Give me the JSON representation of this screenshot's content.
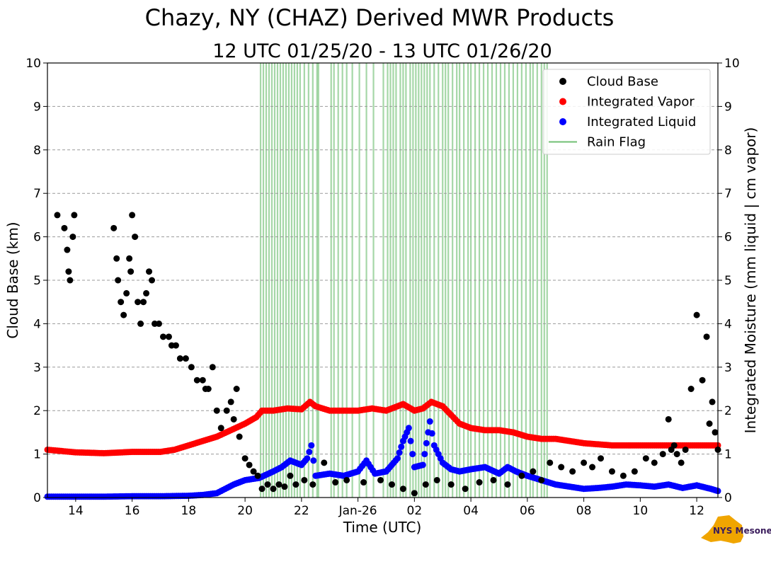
{
  "chart_data": {
    "type": "scatter",
    "title": "Chazy, NY (CHAZ) Derived MWR Products",
    "subtitle": "12 UTC 01/25/20 - 13 UTC 01/26/20",
    "xlabel": "Time (UTC)",
    "ylabel_left": "Cloud Base (km)",
    "ylabel_right": "Integrated Moisture (mm liquid | cm vapor)",
    "xlim": [
      13.0,
      36.75
    ],
    "ylim": [
      0,
      10
    ],
    "x_ticks": [
      {
        "value": 14,
        "label": "14"
      },
      {
        "value": 16,
        "label": "16"
      },
      {
        "value": 18,
        "label": "18"
      },
      {
        "value": 20,
        "label": "20"
      },
      {
        "value": 22,
        "label": "22"
      },
      {
        "value": 24,
        "label": "Jan-26"
      },
      {
        "value": 26,
        "label": "02"
      },
      {
        "value": 28,
        "label": "04"
      },
      {
        "value": 30,
        "label": "06"
      },
      {
        "value": 32,
        "label": "08"
      },
      {
        "value": 34,
        "label": "10"
      },
      {
        "value": 36,
        "label": "12"
      }
    ],
    "y_ticks": [
      "0",
      "1",
      "2",
      "3",
      "4",
      "5",
      "6",
      "7",
      "8",
      "9",
      "10"
    ],
    "grid": true,
    "legend_position": "top-right",
    "legend": [
      {
        "label": "Cloud Base",
        "color": "#000000",
        "kind": "marker"
      },
      {
        "label": "Integrated Vapor",
        "color": "#ff0000",
        "kind": "marker"
      },
      {
        "label": "Integrated Liquid",
        "color": "#0000ff",
        "kind": "marker"
      },
      {
        "label": "Rain Flag",
        "color": "#4caf50",
        "kind": "line"
      }
    ],
    "series": [
      {
        "name": "Cloud Base",
        "color": "#000000",
        "x": [
          13.35,
          13.6,
          13.7,
          13.75,
          13.8,
          13.9,
          13.95,
          15.35,
          15.45,
          15.5,
          15.6,
          15.7,
          15.8,
          15.9,
          15.95,
          16.0,
          16.1,
          16.2,
          16.3,
          16.4,
          16.5,
          16.6,
          16.7,
          16.8,
          16.95,
          17.1,
          17.3,
          17.4,
          17.55,
          17.7,
          17.9,
          18.1,
          18.3,
          18.5,
          18.6,
          18.7,
          18.85,
          19.0,
          19.15,
          19.35,
          19.5,
          19.6,
          19.7,
          19.8,
          20.0,
          20.15,
          20.3,
          20.45,
          20.6,
          20.8,
          21.0,
          21.2,
          21.4,
          21.6,
          21.8,
          22.1,
          22.4,
          22.8,
          23.2,
          23.6,
          24.2,
          24.8,
          25.2,
          25.6,
          26.0,
          26.4,
          26.8,
          27.3,
          27.8,
          28.3,
          28.8,
          29.3,
          29.8,
          30.2,
          30.5,
          30.8,
          31.2,
          31.6,
          32.0,
          32.3,
          32.6,
          33.0,
          33.4,
          33.8,
          34.2,
          34.5,
          34.8,
          35.0,
          35.1,
          35.2,
          35.3,
          35.45,
          35.6,
          35.8,
          36.0,
          36.2,
          36.35,
          36.45,
          36.55,
          36.65,
          36.75
        ],
        "values": [
          6.5,
          6.2,
          5.7,
          5.2,
          5.0,
          6.0,
          6.5,
          6.2,
          5.5,
          5.0,
          4.5,
          4.2,
          4.7,
          5.5,
          5.2,
          6.5,
          6.0,
          4.5,
          4.0,
          4.5,
          4.7,
          5.2,
          5.0,
          4.0,
          4.0,
          3.7,
          3.7,
          3.5,
          3.5,
          3.2,
          3.2,
          3.0,
          2.7,
          2.7,
          2.5,
          2.5,
          3.0,
          2.0,
          1.6,
          2.0,
          2.2,
          1.8,
          2.5,
          1.4,
          0.9,
          0.75,
          0.6,
          0.5,
          0.2,
          0.3,
          0.2,
          0.3,
          0.25,
          0.5,
          0.3,
          0.4,
          0.3,
          0.8,
          0.35,
          0.4,
          0.35,
          0.4,
          0.3,
          0.2,
          0.1,
          0.3,
          0.4,
          0.3,
          0.2,
          0.35,
          0.4,
          0.3,
          0.5,
          0.6,
          0.4,
          0.8,
          0.7,
          0.6,
          0.8,
          0.7,
          0.9,
          0.6,
          0.5,
          0.6,
          0.9,
          0.8,
          1.0,
          1.8,
          1.1,
          1.2,
          1.0,
          0.8,
          1.1,
          2.5,
          4.2,
          2.7,
          3.7,
          1.7,
          2.2,
          1.5,
          1.1
        ]
      },
      {
        "name": "Integrated Vapor",
        "color": "#ff0000",
        "x": [
          13.0,
          14.0,
          15.0,
          16.0,
          17.0,
          17.5,
          18.0,
          18.5,
          19.0,
          19.5,
          20.0,
          20.4,
          20.6,
          21.0,
          21.5,
          22.0,
          22.3,
          22.5,
          23.0,
          23.5,
          24.0,
          24.5,
          25.0,
          25.4,
          25.6,
          26.0,
          26.3,
          26.6,
          27.0,
          27.3,
          27.6,
          28.0,
          28.5,
          29.0,
          29.5,
          30.0,
          30.5,
          31.0,
          31.5,
          32.0,
          33.0,
          34.0,
          35.0,
          36.0,
          36.75
        ],
        "values": [
          1.1,
          1.04,
          1.02,
          1.05,
          1.05,
          1.1,
          1.2,
          1.3,
          1.4,
          1.55,
          1.7,
          1.85,
          2.0,
          2.0,
          2.05,
          2.03,
          2.2,
          2.1,
          2.0,
          2.0,
          2.0,
          2.05,
          2.0,
          2.1,
          2.15,
          2.0,
          2.05,
          2.2,
          2.1,
          1.9,
          1.7,
          1.6,
          1.55,
          1.55,
          1.5,
          1.4,
          1.35,
          1.35,
          1.3,
          1.25,
          1.2,
          1.2,
          1.2,
          1.2,
          1.2
        ]
      },
      {
        "name": "Integrated Liquid",
        "color": "#0000ff",
        "x": [
          13.0,
          14.0,
          15.0,
          16.0,
          17.0,
          18.0,
          18.5,
          19.0,
          19.3,
          19.6,
          20.0,
          20.5,
          21.0,
          21.3,
          21.6,
          22.0,
          22.2,
          22.35,
          22.5,
          23.0,
          23.5,
          24.0,
          24.3,
          24.6,
          25.0,
          25.4,
          25.6,
          25.8,
          26.0,
          26.3,
          26.55,
          26.7,
          27.0,
          27.3,
          27.6,
          28.0,
          28.5,
          29.0,
          29.3,
          29.6,
          30.0,
          30.5,
          31.0,
          31.5,
          32.0,
          32.5,
          33.0,
          33.5,
          34.0,
          34.5,
          35.0,
          35.5,
          36.0,
          36.5,
          36.75
        ],
        "values": [
          0.02,
          0.02,
          0.02,
          0.03,
          0.03,
          0.04,
          0.06,
          0.1,
          0.2,
          0.3,
          0.4,
          0.45,
          0.6,
          0.7,
          0.85,
          0.75,
          0.9,
          1.2,
          0.5,
          0.55,
          0.5,
          0.6,
          0.85,
          0.55,
          0.6,
          0.9,
          1.3,
          1.6,
          0.7,
          0.75,
          1.75,
          1.2,
          0.8,
          0.65,
          0.6,
          0.65,
          0.7,
          0.55,
          0.7,
          0.6,
          0.5,
          0.4,
          0.3,
          0.25,
          0.2,
          0.22,
          0.25,
          0.3,
          0.28,
          0.25,
          0.3,
          0.22,
          0.28,
          0.2,
          0.15
        ]
      }
    ],
    "rain_flag_x": [
      20.55,
      20.65,
      20.75,
      20.85,
      20.95,
      21.05,
      21.15,
      21.25,
      21.35,
      21.45,
      21.55,
      21.65,
      21.75,
      21.85,
      21.95,
      22.1,
      22.25,
      22.4,
      22.55,
      22.6,
      23.05,
      23.15,
      23.3,
      23.45,
      23.6,
      23.8,
      24.05,
      24.3,
      24.55,
      24.9,
      25.05,
      25.15,
      25.25,
      25.35,
      25.5,
      25.6,
      25.7,
      25.85,
      25.95,
      26.05,
      26.15,
      26.25,
      26.35,
      26.45,
      26.55,
      26.7,
      26.85,
      27.0,
      27.1,
      27.2,
      27.35,
      27.5,
      27.6,
      27.75,
      27.9,
      28.0,
      28.15,
      28.3,
      28.45,
      28.6,
      28.75,
      28.9,
      29.05,
      29.2,
      29.35,
      29.5,
      29.65,
      29.8,
      29.95,
      30.1,
      30.2,
      30.35,
      30.5,
      30.6,
      30.7
    ],
    "source_logo": "NYS Mesonet"
  }
}
